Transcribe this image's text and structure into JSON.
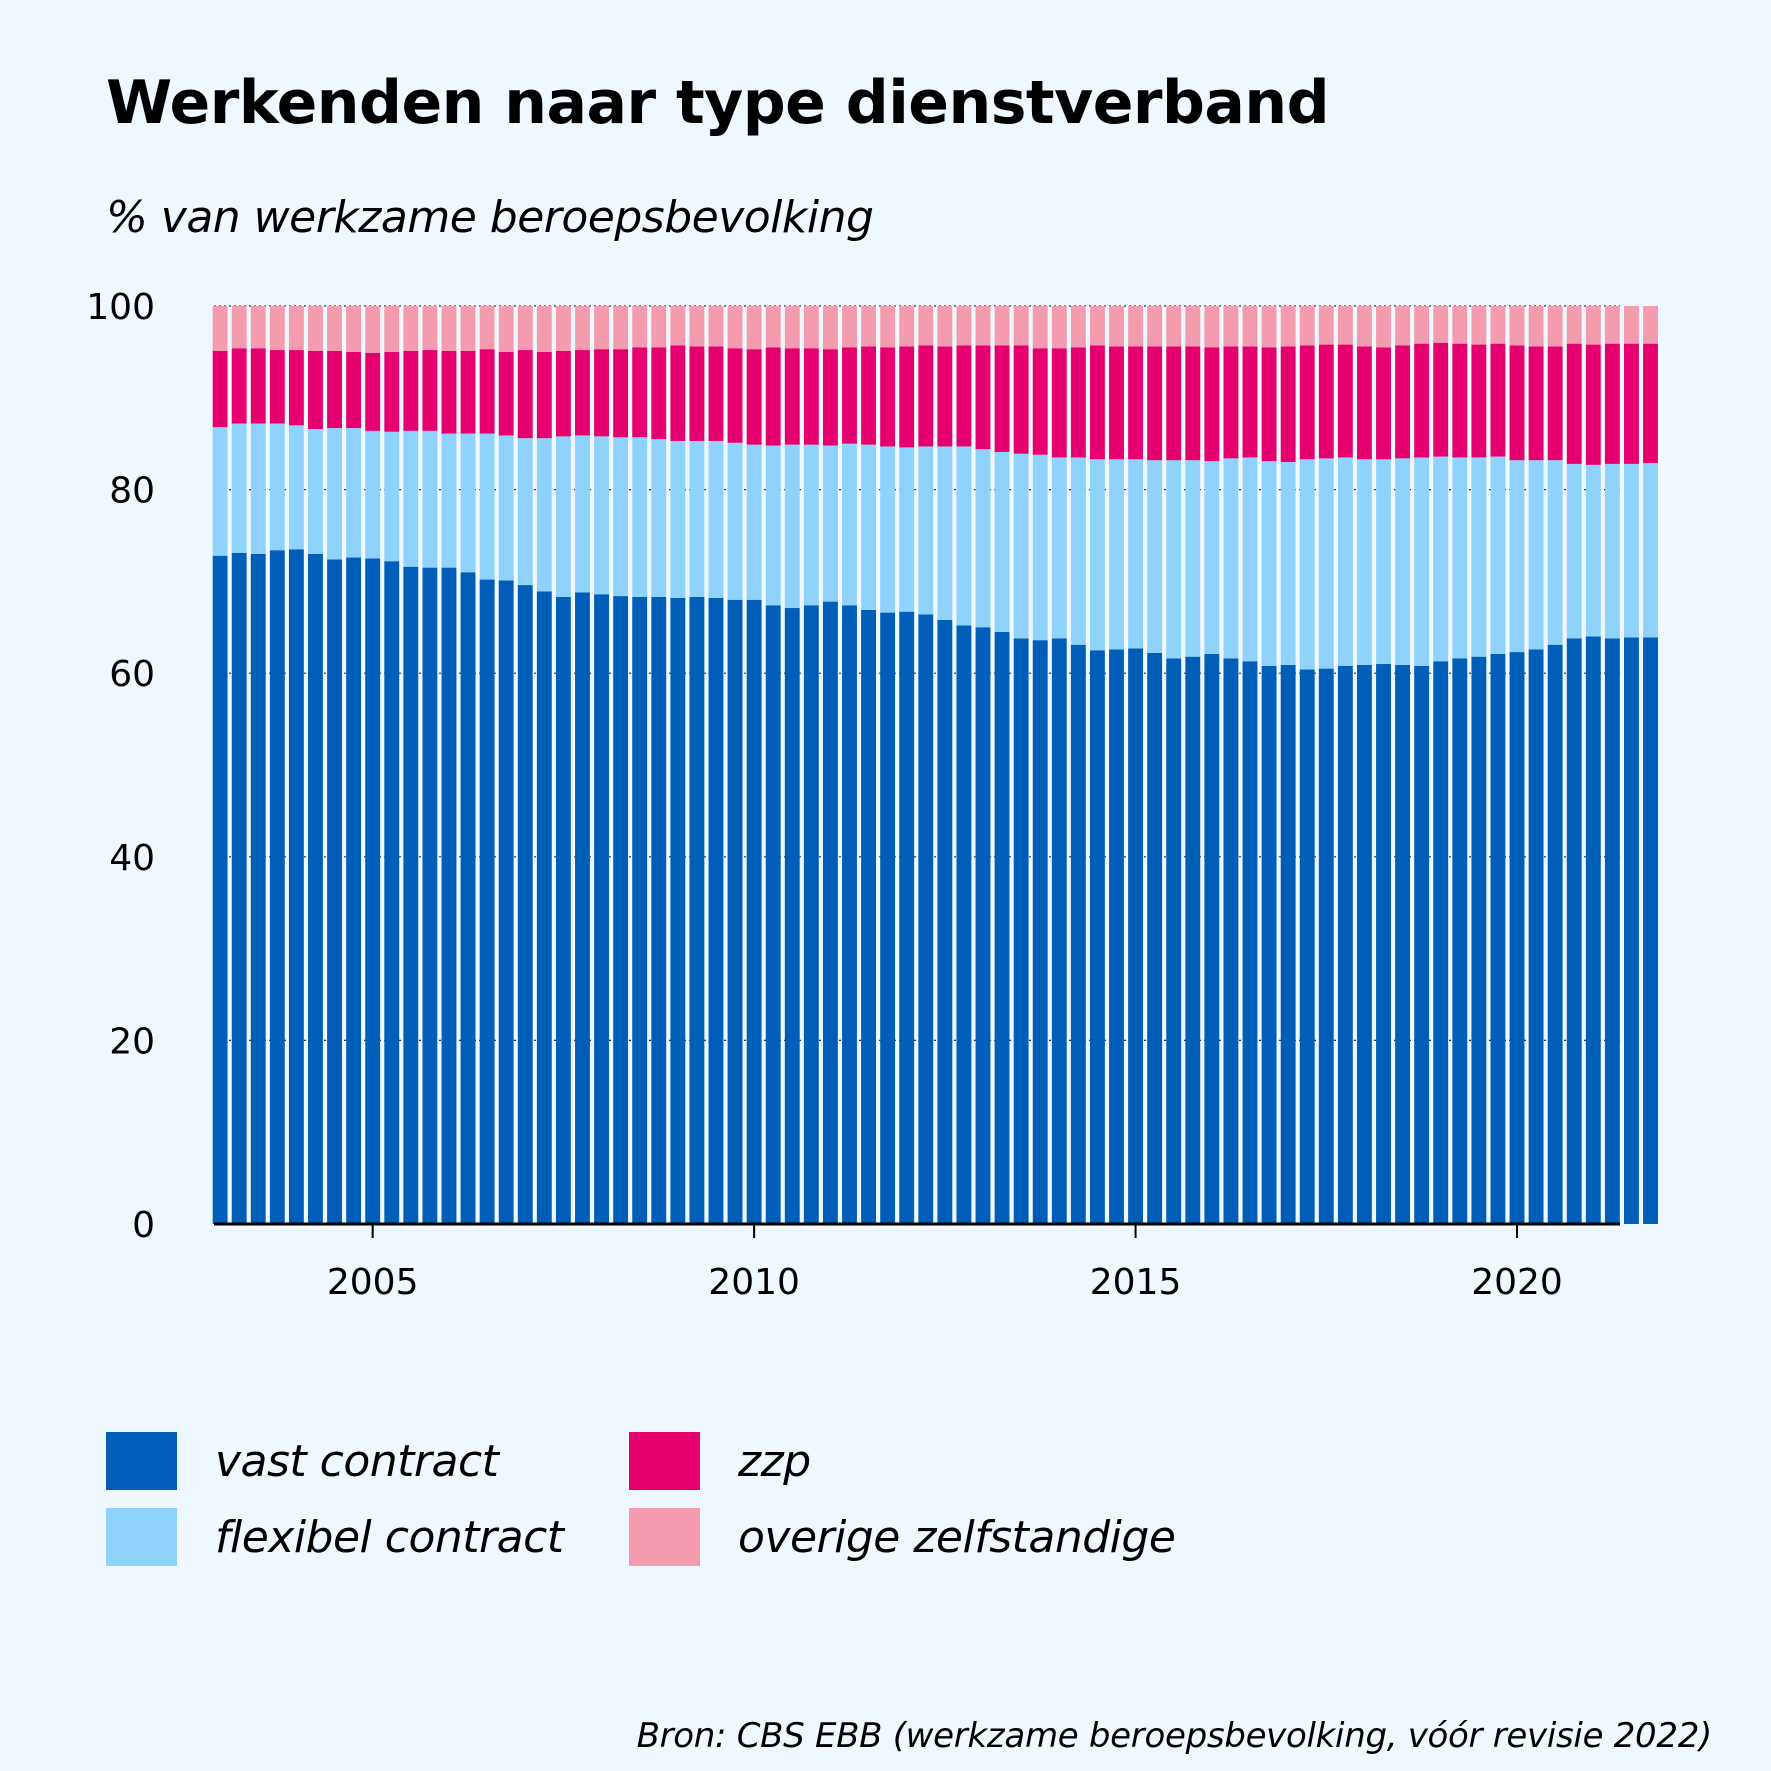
{
  "chart_data": {
    "type": "bar",
    "stacked": true,
    "title": "Werkenden naar type dienstverband",
    "subtitle": "% van werkzame beroepsbevolking",
    "ylim": [
      0,
      100
    ],
    "yticks": [
      0,
      20,
      40,
      60,
      80,
      100
    ],
    "x_start": 2003.0,
    "x_step": 0.25,
    "xlim": [
      2002.92,
      2021.35
    ],
    "xticks": [
      2005,
      2010,
      2015,
      2020
    ],
    "grid": true,
    "legend_position": "bottom",
    "series": [
      {
        "name": "vast contract",
        "color": "#005eb8",
        "values": [
          72.8,
          73.1,
          73.0,
          73.4,
          73.5,
          73.0,
          72.4,
          72.6,
          72.5,
          72.2,
          71.6,
          71.5,
          71.5,
          71.0,
          70.2,
          70.1,
          69.6,
          68.9,
          68.3,
          68.8,
          68.6,
          68.4,
          68.3,
          68.3,
          68.2,
          68.3,
          68.2,
          68.0,
          68.0,
          67.4,
          67.1,
          67.4,
          67.8,
          67.4,
          66.9,
          66.6,
          66.7,
          66.4,
          65.8,
          65.2,
          65.0,
          64.5,
          63.8,
          63.6,
          63.8,
          63.1,
          62.5,
          62.6,
          62.7,
          62.2,
          61.6,
          61.8,
          62.1,
          61.6,
          61.3,
          60.8,
          60.9,
          60.4,
          60.5,
          60.8,
          60.9,
          61.0,
          60.9,
          60.8,
          61.3,
          61.6,
          61.8,
          62.1,
          62.3,
          62.6,
          63.1,
          63.8,
          64.0,
          63.8,
          63.9,
          63.9
        ]
      },
      {
        "name": "flexibel contract",
        "color": "#8fd3fc",
        "values": [
          14.0,
          14.1,
          14.2,
          13.8,
          13.5,
          13.6,
          14.3,
          14.1,
          13.9,
          14.1,
          14.8,
          14.9,
          14.6,
          15.1,
          15.9,
          15.8,
          16.0,
          16.7,
          17.5,
          17.1,
          17.2,
          17.3,
          17.4,
          17.2,
          17.1,
          17.0,
          17.1,
          17.1,
          16.9,
          17.4,
          17.8,
          17.5,
          17.0,
          17.6,
          18.0,
          18.1,
          17.9,
          18.3,
          18.9,
          19.5,
          19.4,
          19.6,
          20.1,
          20.2,
          19.7,
          20.4,
          20.8,
          20.7,
          20.6,
          21.0,
          21.6,
          21.4,
          21.0,
          21.8,
          22.2,
          22.3,
          22.1,
          22.9,
          22.9,
          22.7,
          22.4,
          22.3,
          22.5,
          22.7,
          22.3,
          21.9,
          21.7,
          21.5,
          20.9,
          20.6,
          20.1,
          19.0,
          18.7,
          19.0,
          18.9,
          19.0
        ]
      },
      {
        "name": "zzp",
        "color": "#e6006f",
        "values": [
          8.3,
          8.2,
          8.2,
          8.0,
          8.2,
          8.5,
          8.4,
          8.3,
          8.5,
          8.7,
          8.7,
          8.8,
          9.0,
          9.0,
          9.2,
          9.1,
          9.6,
          9.4,
          9.3,
          9.3,
          9.5,
          9.6,
          9.8,
          10.0,
          10.4,
          10.3,
          10.3,
          10.3,
          10.4,
          10.7,
          10.5,
          10.5,
          10.5,
          10.5,
          10.7,
          10.8,
          11.0,
          11.0,
          10.9,
          11.0,
          11.3,
          11.6,
          11.8,
          11.6,
          11.9,
          12.0,
          12.4,
          12.3,
          12.3,
          12.4,
          12.4,
          12.4,
          12.4,
          12.2,
          12.1,
          12.4,
          12.6,
          12.4,
          12.4,
          12.3,
          12.3,
          12.2,
          12.3,
          12.4,
          12.4,
          12.4,
          12.3,
          12.3,
          12.5,
          12.4,
          12.4,
          13.1,
          13.1,
          13.1,
          13.1,
          13.0
        ]
      },
      {
        "name": "overige zelfstandige",
        "color": "#f59bb0",
        "values": [
          4.9,
          4.6,
          4.6,
          4.8,
          4.8,
          4.9,
          4.9,
          5.0,
          5.1,
          5.0,
          4.9,
          4.8,
          4.9,
          4.9,
          4.7,
          5.0,
          4.8,
          5.0,
          4.9,
          4.8,
          4.7,
          4.7,
          4.5,
          4.5,
          4.3,
          4.4,
          4.4,
          4.6,
          4.7,
          4.5,
          4.6,
          4.6,
          4.7,
          4.5,
          4.4,
          4.5,
          4.4,
          4.3,
          4.4,
          4.3,
          4.3,
          4.3,
          4.3,
          4.6,
          4.6,
          4.5,
          4.3,
          4.4,
          4.4,
          4.4,
          4.4,
          4.4,
          4.5,
          4.4,
          4.4,
          4.5,
          4.4,
          4.3,
          4.2,
          4.2,
          4.4,
          4.5,
          4.3,
          4.1,
          4.0,
          4.1,
          4.2,
          4.1,
          4.3,
          4.4,
          4.4,
          4.1,
          4.2,
          4.1,
          4.1,
          4.1
        ]
      }
    ],
    "source": "Bron: CBS EBB (werkzame beroepsbevolking, vóór revisie 2022)"
  }
}
